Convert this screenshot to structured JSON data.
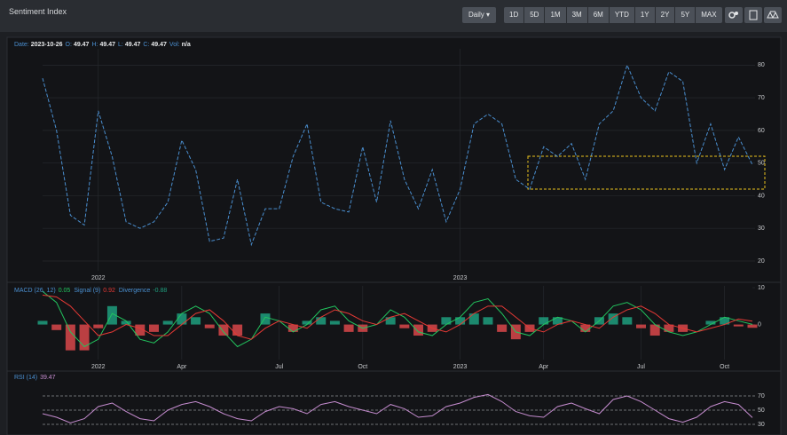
{
  "header": {
    "title": "Sentiment Index"
  },
  "toolbar": {
    "interval": "Daily",
    "ranges": [
      "1D",
      "5D",
      "1M",
      "3M",
      "6M",
      "YTD",
      "1Y",
      "2Y",
      "5Y",
      "MAX"
    ]
  },
  "chart_data": [
    {
      "type": "line",
      "readout": [
        {
          "label": "Date:",
          "value": "2023-10-26"
        },
        {
          "label": "O:",
          "value": 49.47
        },
        {
          "label": "H:",
          "value": 49.47
        },
        {
          "label": "L:",
          "value": 49.47
        },
        {
          "label": "C:",
          "value": 49.47
        },
        {
          "label": "Vol:",
          "value": "n/a"
        }
      ],
      "categories": [
        null,
        null,
        null,
        null,
        "2022",
        null,
        null,
        null,
        null,
        null,
        null,
        null,
        null,
        null,
        null,
        null,
        null,
        null,
        null,
        null,
        null,
        null,
        null,
        null,
        null,
        null,
        null,
        null,
        null,
        null,
        "2023",
        null,
        null,
        null,
        null,
        null,
        null,
        null,
        null,
        null,
        null,
        null,
        null,
        null,
        null,
        null,
        null,
        null,
        null,
        null,
        null,
        null
      ],
      "series": [
        {
          "name": "Sentiment Index",
          "color": "#4a8fd0",
          "line_style": "dashed",
          "values": [
            76,
            60,
            34,
            31,
            66,
            52,
            32,
            30,
            32,
            38,
            57,
            48,
            26,
            27,
            45,
            25,
            36,
            36,
            52,
            62,
            38,
            36,
            35,
            55,
            38,
            63,
            45,
            36,
            48,
            32,
            42,
            62,
            65,
            62,
            45,
            42,
            55,
            52,
            56,
            45,
            62,
            66,
            80,
            70,
            66,
            78,
            75,
            50,
            62,
            48,
            58,
            49.47
          ]
        }
      ],
      "ylim": [
        17,
        85
      ],
      "yticks": [
        20,
        30,
        40,
        50,
        60,
        70,
        80
      ],
      "grid": true
    },
    {
      "type": "macd",
      "categories": [
        null,
        null,
        null,
        null,
        "2022",
        null,
        null,
        null,
        null,
        null,
        "Apr",
        null,
        null,
        null,
        null,
        null,
        null,
        "Jul",
        null,
        null,
        null,
        null,
        null,
        "Oct",
        null,
        null,
        null,
        null,
        null,
        null,
        "2023",
        null,
        null,
        null,
        null,
        null,
        "Apr",
        null,
        null,
        null,
        null,
        null,
        null,
        "Jul",
        null,
        null,
        null,
        null,
        null,
        "Oct",
        null,
        null
      ],
      "series": [
        {
          "name": "Divergence",
          "kind": "histogram",
          "color": "#1f9e7e",
          "negative_color": "#d9464a",
          "values": [
            1,
            -1.5,
            -7,
            -7,
            -1,
            5,
            1,
            -3,
            -2,
            1,
            3,
            2,
            -1,
            -3,
            -3,
            0,
            3,
            0,
            -2,
            1,
            2,
            1,
            -2,
            -2,
            0,
            2,
            -1,
            -3,
            -2,
            2,
            2,
            3,
            2,
            -2,
            -4,
            -2,
            2,
            2,
            0,
            -2,
            2,
            3,
            2,
            -1,
            -3,
            -2,
            -2,
            0,
            1,
            2,
            -0.5,
            -0.88
          ]
        },
        {
          "name": "MACD (26, 12)",
          "kind": "line",
          "color": "#22c55e",
          "values": [
            9,
            6,
            -2,
            -6,
            -4,
            3,
            1,
            -4,
            -5,
            -2,
            3,
            5,
            3,
            -2,
            -6,
            -4,
            2,
            1,
            -2,
            0,
            4,
            5,
            1,
            -1,
            0,
            4,
            2,
            -2,
            -3,
            0,
            2,
            6,
            7,
            3,
            -2,
            -3,
            0,
            2,
            1,
            -2,
            1,
            5,
            6,
            4,
            0,
            -2,
            -3,
            -2,
            0,
            2,
            1,
            0.05
          ]
        },
        {
          "name": "Signal (9)",
          "kind": "line",
          "color": "#e53935",
          "values": [
            8,
            7.5,
            5,
            1,
            -3,
            -2,
            0,
            -1,
            -3,
            -3,
            0,
            3,
            4,
            1,
            -3,
            -4,
            -1,
            1,
            0,
            -1,
            2,
            4,
            3,
            1,
            0,
            2,
            3,
            1,
            -1,
            -2,
            0,
            3,
            5,
            5,
            2,
            -1,
            -2,
            0,
            1,
            0,
            -1,
            2,
            4,
            5,
            3,
            0,
            -1,
            -2,
            -1,
            0,
            1.5,
            0.92
          ]
        }
      ],
      "ylim": [
        -9.5,
        10.5
      ],
      "yticks": [
        0,
        10
      ],
      "grid": false
    },
    {
      "type": "line",
      "series": [
        {
          "name": "RSI (14)",
          "color": "#c58ccf",
          "values": [
            45,
            40,
            32,
            38,
            55,
            60,
            48,
            38,
            35,
            50,
            58,
            62,
            55,
            45,
            38,
            35,
            48,
            55,
            52,
            45,
            58,
            62,
            55,
            50,
            45,
            58,
            52,
            40,
            42,
            55,
            60,
            68,
            72,
            62,
            48,
            42,
            40,
            55,
            60,
            52,
            45,
            65,
            70,
            62,
            50,
            38,
            33,
            40,
            55,
            62,
            58,
            39.47
          ]
        }
      ],
      "ylim": [
        20,
        100
      ],
      "yticks": [
        30,
        50,
        70
      ],
      "grid": true,
      "grid_style": "dashed"
    }
  ]
}
